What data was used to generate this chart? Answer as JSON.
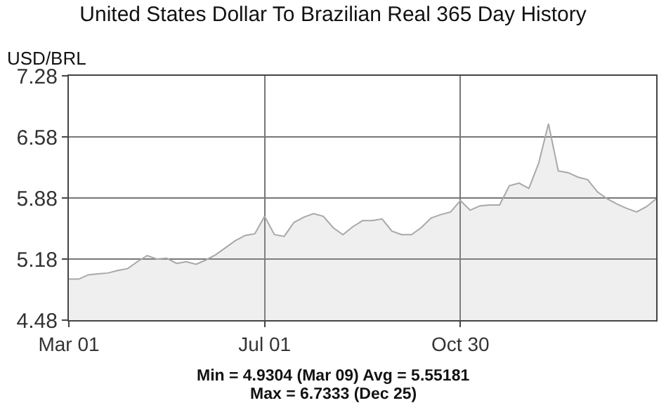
{
  "chart_data": {
    "type": "area",
    "title": "United States Dollar To Brazilian Real 365 Day History",
    "ylabel": "USD/BRL",
    "categories": [
      "Mar 01",
      null,
      null,
      null,
      null,
      null,
      null,
      null,
      null,
      null,
      null,
      null,
      null,
      null,
      null,
      null,
      null,
      null,
      null,
      null,
      "Jul 01",
      null,
      null,
      null,
      null,
      null,
      null,
      null,
      null,
      null,
      null,
      null,
      null,
      null,
      null,
      null,
      null,
      null,
      null,
      null,
      "Oct 30",
      null,
      null,
      null,
      null,
      null,
      null,
      null,
      null,
      null,
      null,
      null,
      null,
      null,
      null,
      null,
      null,
      null,
      null,
      null,
      null
    ],
    "series": [
      {
        "color": "#a8a8a8",
        "values": [
          4.95,
          4.95,
          5.0,
          5.01,
          5.02,
          5.05,
          5.07,
          5.15,
          5.22,
          5.18,
          5.19,
          5.13,
          5.15,
          5.12,
          5.17,
          5.23,
          5.31,
          5.39,
          5.45,
          5.47,
          5.67,
          5.46,
          5.44,
          5.6,
          5.66,
          5.7,
          5.67,
          5.54,
          5.46,
          5.55,
          5.62,
          5.62,
          5.64,
          5.5,
          5.46,
          5.46,
          5.54,
          5.65,
          5.69,
          5.72,
          5.85,
          5.74,
          5.79,
          5.8,
          5.8,
          6.02,
          6.05,
          5.99,
          6.28,
          6.73,
          6.19,
          6.17,
          6.12,
          6.09,
          5.95,
          5.87,
          5.81,
          5.76,
          5.72,
          5.78,
          5.87
        ]
      }
    ],
    "ylim": [
      4.48,
      7.28
    ],
    "yticks": [
      4.48,
      5.18,
      5.88,
      6.58,
      7.28
    ],
    "grid": true,
    "marker": "none",
    "line_style": "solid",
    "annotations": [
      "Min = 4.9304 (Mar 09) Avg = 5.55181",
      "Max = 6.7333 (Dec 25)"
    ]
  }
}
